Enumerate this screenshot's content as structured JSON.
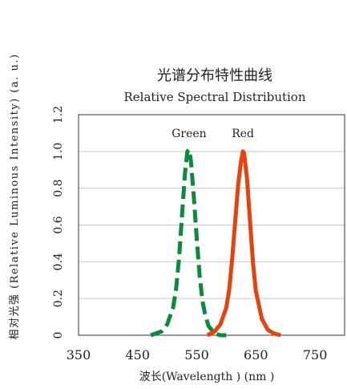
{
  "chart_data": {
    "type": "line",
    "title": "光谱分布特性曲线",
    "subtitle": "Relative Spectral Distribution",
    "xlabel": "波长(Wavelength ) (nm )",
    "ylabel": "相对光强 (Relative Luminous Intensity) (a. u.)",
    "xlim": [
      350,
      800
    ],
    "ylim": [
      0,
      1.2
    ],
    "x_ticks": [
      "350",
      "450",
      "550",
      "650",
      "750"
    ],
    "y_ticks": [
      "0",
      "0.2",
      "0.4",
      "0.6",
      "0.8",
      "1.0",
      "1.2"
    ],
    "grid": true,
    "series": [
      {
        "name": "Green",
        "color": "#0a8a3c",
        "style": "dashed",
        "x": [
          472,
          490,
          500,
          510,
          515,
          520,
          525,
          530,
          534,
          537,
          540,
          545,
          550,
          555,
          560,
          565,
          570,
          580,
          590,
          600
        ],
        "y": [
          0.0,
          0.02,
          0.06,
          0.15,
          0.25,
          0.42,
          0.65,
          0.88,
          1.0,
          1.01,
          0.95,
          0.75,
          0.52,
          0.32,
          0.18,
          0.1,
          0.05,
          0.01,
          0.0,
          0.0
        ]
      },
      {
        "name": "Red",
        "color": "#e8420c",
        "style": "solid",
        "x": [
          568,
          580,
          590,
          600,
          605,
          610,
          615,
          620,
          625,
          628,
          630,
          635,
          640,
          645,
          650,
          660,
          670,
          680,
          692
        ],
        "y": [
          0.0,
          0.02,
          0.06,
          0.15,
          0.25,
          0.42,
          0.62,
          0.82,
          0.95,
          1.0,
          0.99,
          0.85,
          0.62,
          0.4,
          0.24,
          0.09,
          0.03,
          0.01,
          0.0
        ]
      }
    ]
  }
}
